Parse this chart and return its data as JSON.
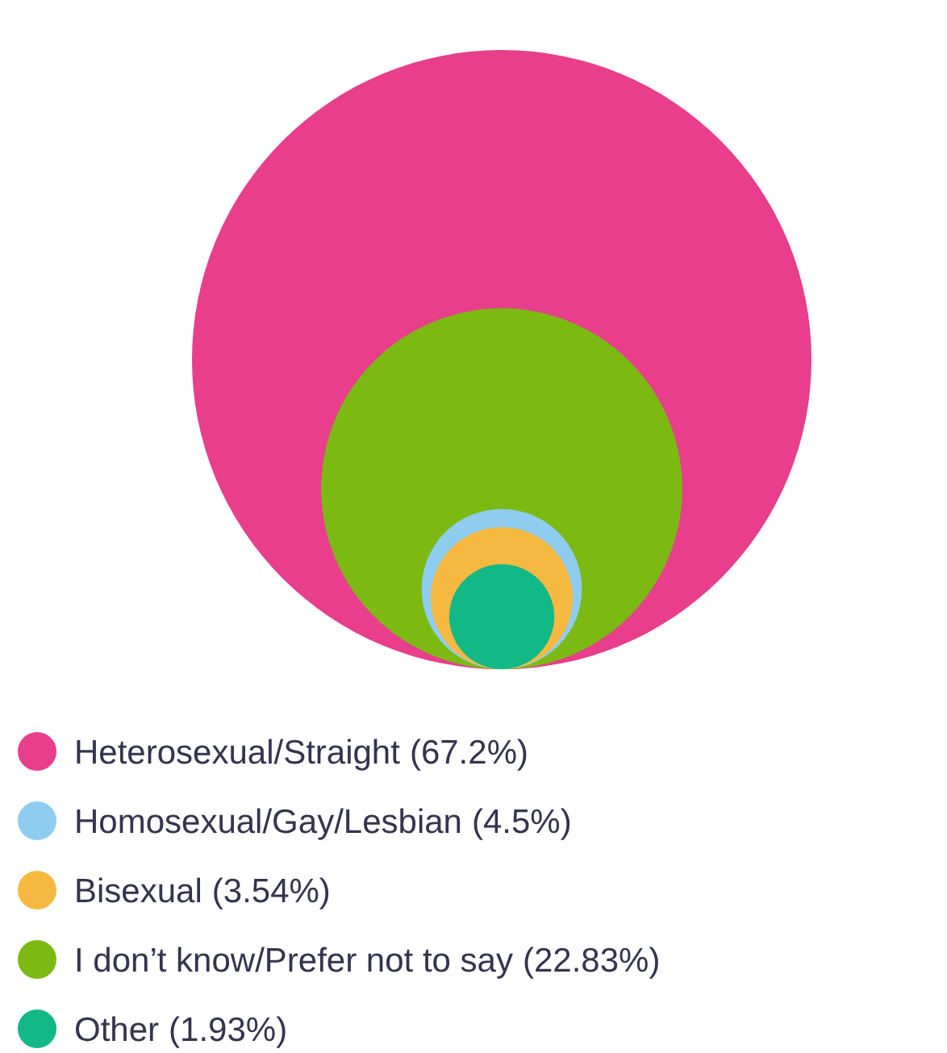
{
  "chart_data": {
    "type": "other",
    "categories": [
      "Heterosexual/Straight",
      "Homosexual/Gay/Lesbian",
      "Bisexual",
      "I don’t know/Prefer not to say",
      "Other"
    ],
    "values": [
      67.2,
      4.5,
      3.54,
      22.83,
      1.93
    ],
    "value_labels": [
      "(67.2%)",
      "(4.5%)",
      "(3.54%)",
      "(22.83%)",
      "(1.93%)"
    ],
    "colors": [
      "#e83e8c",
      "#8ecdf0",
      "#f5b942",
      "#7cb913",
      "#12b886"
    ]
  }
}
